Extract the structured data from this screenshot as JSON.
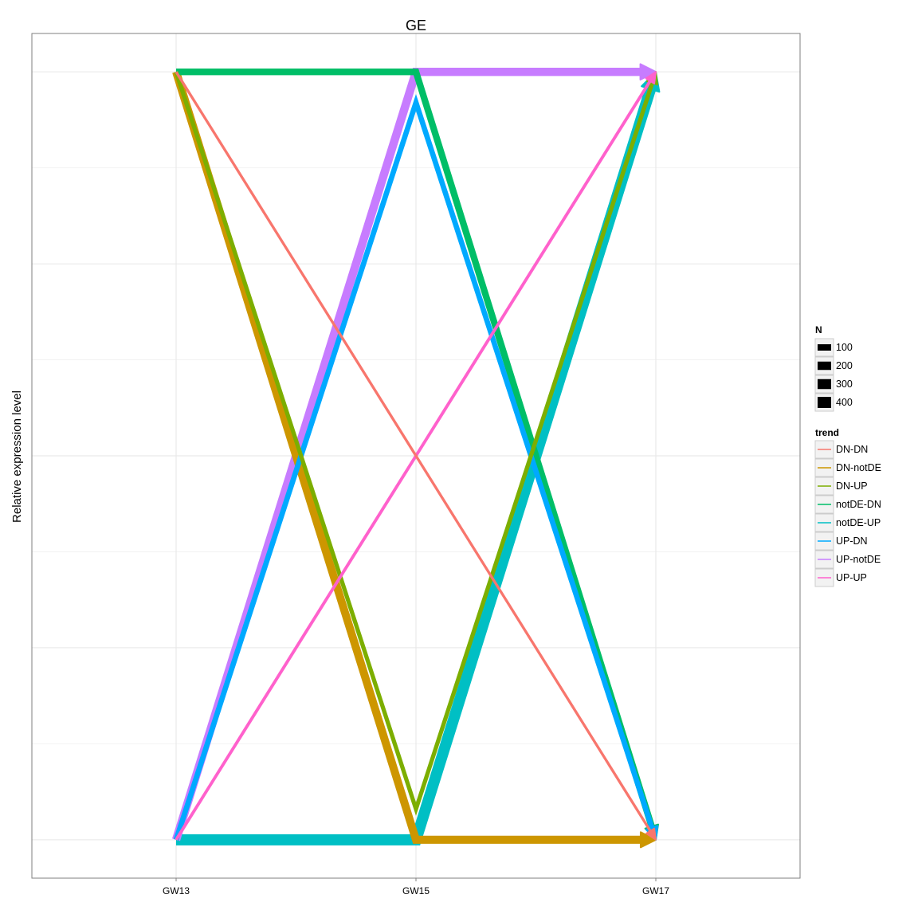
{
  "chart_data": {
    "type": "line",
    "title": "GE",
    "xlabel": "",
    "ylabel": "Relative expression level",
    "categories": [
      "GW13",
      "GW15",
      "GW17"
    ],
    "ylim": [
      -0.1,
      2.1
    ],
    "grid": true,
    "legend_position": "right",
    "size_legend": {
      "title": "N",
      "values": [
        "100",
        "200",
        "300",
        "400"
      ]
    },
    "trend_legend_title": "trend",
    "series": [
      {
        "name": "DN-DN",
        "color": "#F8766D",
        "n": 5,
        "values": [
          2,
          1,
          0
        ]
      },
      {
        "name": "DN-notDE",
        "color": "#CD9600",
        "n": 180,
        "values": [
          2,
          0,
          0
        ]
      },
      {
        "name": "DN-UP",
        "color": "#7CAE00",
        "n": 30,
        "values": [
          2,
          0.08,
          2
        ]
      },
      {
        "name": "notDE-DN",
        "color": "#00BE67",
        "n": 110,
        "values": [
          2,
          2,
          0
        ]
      },
      {
        "name": "notDE-UP",
        "color": "#00BFC4",
        "n": 400,
        "values": [
          0,
          0,
          2
        ]
      },
      {
        "name": "UP-DN",
        "color": "#00A9FF",
        "n": 60,
        "values": [
          0,
          1.92,
          0
        ]
      },
      {
        "name": "UP-notDE",
        "color": "#C77CFF",
        "n": 200,
        "values": [
          0,
          2,
          2
        ]
      },
      {
        "name": "UP-UP",
        "color": "#FF61CC",
        "n": 10,
        "values": [
          0,
          1,
          2
        ]
      }
    ]
  }
}
